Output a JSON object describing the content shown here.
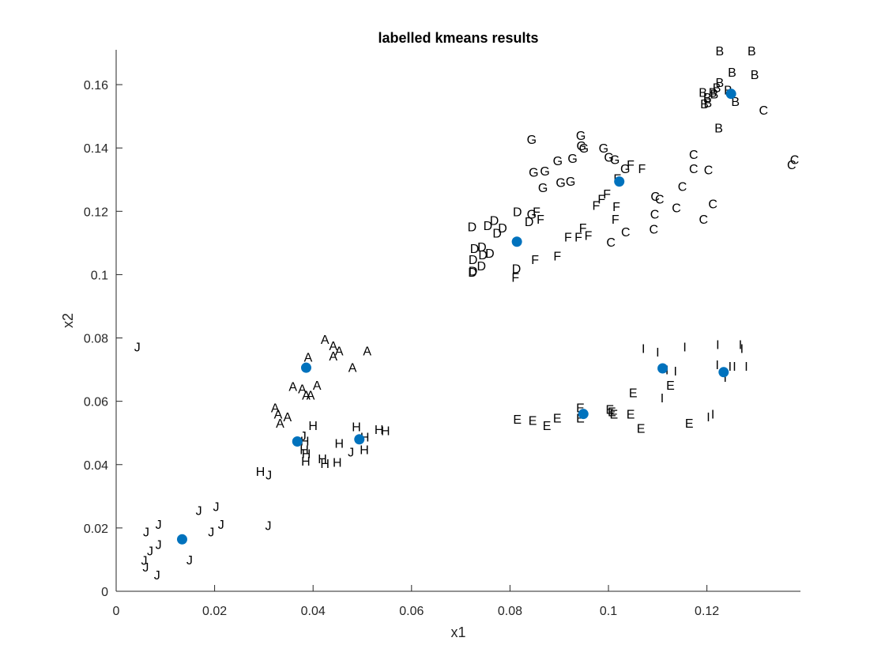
{
  "chart_data": {
    "type": "scatter",
    "title": "labelled kmeans results",
    "xlabel": "x1",
    "ylabel": "x2",
    "xlim": [
      0,
      0.139
    ],
    "ylim": [
      0,
      0.171
    ],
    "grid": false,
    "legend": "none",
    "x_ticks": [
      "0",
      "0.02",
      "0.04",
      "0.06",
      "0.08",
      "0.1",
      "0.12"
    ],
    "y_ticks": [
      "0",
      "0.02",
      "0.04",
      "0.06",
      "0.08",
      "0.1",
      "0.12",
      "0.14",
      "0.16"
    ],
    "centroid_color": "#0072BD",
    "centroids": [
      [
        0.0134,
        0.0164
      ],
      [
        0.0368,
        0.0473
      ],
      [
        0.0386,
        0.0706
      ],
      [
        0.0494,
        0.048
      ],
      [
        0.0814,
        0.1104
      ],
      [
        0.0949,
        0.056
      ],
      [
        0.1022,
        0.1294
      ],
      [
        0.111,
        0.0704
      ],
      [
        0.1234,
        0.0692
      ],
      [
        0.1249,
        0.1571
      ]
    ],
    "labelled_points": [
      {
        "label": "J",
        "points": [
          [
            0.0043,
            0.0772
          ],
          [
            0.0061,
            0.0188
          ],
          [
            0.0086,
            0.0212
          ],
          [
            0.0086,
            0.0148
          ],
          [
            0.0069,
            0.0128
          ],
          [
            0.0057,
            0.0098
          ],
          [
            0.006,
            0.0078
          ],
          [
            0.0083,
            0.0052
          ],
          [
            0.0149,
            0.01
          ],
          [
            0.0168,
            0.0256
          ],
          [
            0.0203,
            0.0268
          ],
          [
            0.0193,
            0.0188
          ],
          [
            0.0213,
            0.0212
          ],
          [
            0.0309,
            0.0208
          ],
          [
            0.031,
            0.0368
          ],
          [
            0.038,
            0.0492
          ],
          [
            0.0477,
            0.044
          ]
        ]
      },
      {
        "label": "A",
        "points": [
          [
            0.0424,
            0.0796
          ],
          [
            0.0441,
            0.0776
          ],
          [
            0.0453,
            0.076
          ],
          [
            0.0441,
            0.0744
          ],
          [
            0.051,
            0.076
          ],
          [
            0.048,
            0.0708
          ],
          [
            0.039,
            0.074
          ],
          [
            0.0408,
            0.0652
          ],
          [
            0.0378,
            0.064
          ],
          [
            0.0359,
            0.0648
          ],
          [
            0.0386,
            0.062
          ],
          [
            0.0395,
            0.062
          ],
          [
            0.0323,
            0.058
          ],
          [
            0.0329,
            0.056
          ],
          [
            0.0348,
            0.0552
          ],
          [
            0.0333,
            0.0532
          ]
        ]
      },
      {
        "label": "H",
        "points": [
          [
            0.04,
            0.0524
          ],
          [
            0.0383,
            0.0476
          ],
          [
            0.0382,
            0.0448
          ],
          [
            0.0386,
            0.0436
          ],
          [
            0.0385,
            0.0412
          ],
          [
            0.0419,
            0.042
          ],
          [
            0.0424,
            0.0404
          ],
          [
            0.0449,
            0.0408
          ],
          [
            0.0453,
            0.0468
          ],
          [
            0.0488,
            0.052
          ],
          [
            0.0505,
            0.0488
          ],
          [
            0.0504,
            0.0448
          ],
          [
            0.0534,
            0.0512
          ],
          [
            0.0547,
            0.0508
          ],
          [
            0.0293,
            0.038
          ]
        ]
      },
      {
        "label": "D",
        "points": [
          [
            0.0723,
            0.1152
          ],
          [
            0.0755,
            0.1156
          ],
          [
            0.0768,
            0.1172
          ],
          [
            0.0785,
            0.1148
          ],
          [
            0.0774,
            0.1132
          ],
          [
            0.0815,
            0.12
          ],
          [
            0.0728,
            0.1084
          ],
          [
            0.0743,
            0.1088
          ],
          [
            0.0745,
            0.1064
          ],
          [
            0.0759,
            0.1068
          ],
          [
            0.0725,
            0.1048
          ],
          [
            0.0742,
            0.1028
          ],
          [
            0.0725,
            0.1012
          ],
          [
            0.0724,
            0.1008
          ],
          [
            0.0813,
            0.102
          ],
          [
            0.0839,
            0.1168
          ]
        ]
      },
      {
        "label": "G",
        "points": [
          [
            0.0844,
            0.1428
          ],
          [
            0.0848,
            0.1324
          ],
          [
            0.0871,
            0.1328
          ],
          [
            0.0867,
            0.1276
          ],
          [
            0.0897,
            0.136
          ],
          [
            0.0903,
            0.1292
          ],
          [
            0.0923,
            0.1296
          ],
          [
            0.0927,
            0.1368
          ],
          [
            0.0944,
            0.144
          ],
          [
            0.0945,
            0.1408
          ],
          [
            0.095,
            0.14
          ],
          [
            0.099,
            0.14
          ],
          [
            0.1001,
            0.1372
          ],
          [
            0.1013,
            0.1364
          ],
          [
            0.1034,
            0.1336
          ],
          [
            0.0844,
            0.1192
          ]
        ]
      },
      {
        "label": "F",
        "points": [
          [
            0.0862,
            0.1176
          ],
          [
            0.0854,
            0.12
          ],
          [
            0.0948,
            0.1148
          ],
          [
            0.0918,
            0.112
          ],
          [
            0.0939,
            0.112
          ],
          [
            0.0959,
            0.1124
          ],
          [
            0.0975,
            0.122
          ],
          [
            0.0986,
            0.124
          ],
          [
            0.0997,
            0.1256
          ],
          [
            0.1018,
            0.1304
          ],
          [
            0.1045,
            0.1348
          ],
          [
            0.1068,
            0.1336
          ],
          [
            0.1016,
            0.1216
          ],
          [
            0.1014,
            0.1176
          ],
          [
            0.0851,
            0.1048
          ],
          [
            0.0896,
            0.106
          ],
          [
            0.0811,
            0.0992
          ]
        ]
      },
      {
        "label": "C",
        "points": [
          [
            0.1173,
            0.138
          ],
          [
            0.1173,
            0.1336
          ],
          [
            0.1203,
            0.1332
          ],
          [
            0.115,
            0.128
          ],
          [
            0.1095,
            0.1248
          ],
          [
            0.1104,
            0.124
          ],
          [
            0.1138,
            0.1212
          ],
          [
            0.1212,
            0.1224
          ],
          [
            0.1094,
            0.1192
          ],
          [
            0.1193,
            0.1176
          ],
          [
            0.1035,
            0.1136
          ],
          [
            0.1092,
            0.1144
          ],
          [
            0.1005,
            0.1104
          ],
          [
            0.1315,
            0.152
          ],
          [
            0.1378,
            0.1364
          ],
          [
            0.1372,
            0.1348
          ]
        ]
      },
      {
        "label": "B",
        "points": [
          [
            0.1226,
            0.1708
          ],
          [
            0.1291,
            0.1708
          ],
          [
            0.1251,
            0.164
          ],
          [
            0.1297,
            0.1632
          ],
          [
            0.1226,
            0.1608
          ],
          [
            0.122,
            0.1592
          ],
          [
            0.1243,
            0.1584
          ],
          [
            0.1192,
            0.1576
          ],
          [
            0.1212,
            0.1576
          ],
          [
            0.1215,
            0.1572
          ],
          [
            0.1201,
            0.156
          ],
          [
            0.1195,
            0.154
          ],
          [
            0.1202,
            0.1544
          ],
          [
            0.1258,
            0.1548
          ],
          [
            0.1224,
            0.1464
          ]
        ]
      },
      {
        "label": "E",
        "points": [
          [
            0.0815,
            0.0544
          ],
          [
            0.0846,
            0.054
          ],
          [
            0.0875,
            0.0524
          ],
          [
            0.0896,
            0.0548
          ],
          [
            0.0943,
            0.058
          ],
          [
            0.0943,
            0.0548
          ],
          [
            0.1003,
            0.0576
          ],
          [
            0.1007,
            0.0568
          ],
          [
            0.1011,
            0.056
          ],
          [
            0.1045,
            0.056
          ],
          [
            0.105,
            0.0628
          ],
          [
            0.1126,
            0.0652
          ],
          [
            0.1066,
            0.0516
          ],
          [
            0.1164,
            0.0532
          ]
        ]
      },
      {
        "label": "I",
        "points": [
          [
            0.1071,
            0.0768
          ],
          [
            0.11,
            0.0756
          ],
          [
            0.1155,
            0.0772
          ],
          [
            0.1222,
            0.078
          ],
          [
            0.1268,
            0.078
          ],
          [
            0.1271,
            0.0768
          ],
          [
            0.1119,
            0.07
          ],
          [
            0.1136,
            0.0696
          ],
          [
            0.1221,
            0.0716
          ],
          [
            0.1247,
            0.0712
          ],
          [
            0.1256,
            0.0712
          ],
          [
            0.128,
            0.0712
          ],
          [
            0.1237,
            0.0676
          ],
          [
            0.1109,
            0.0612
          ],
          [
            0.1212,
            0.056
          ],
          [
            0.1203,
            0.0552
          ]
        ]
      }
    ]
  }
}
